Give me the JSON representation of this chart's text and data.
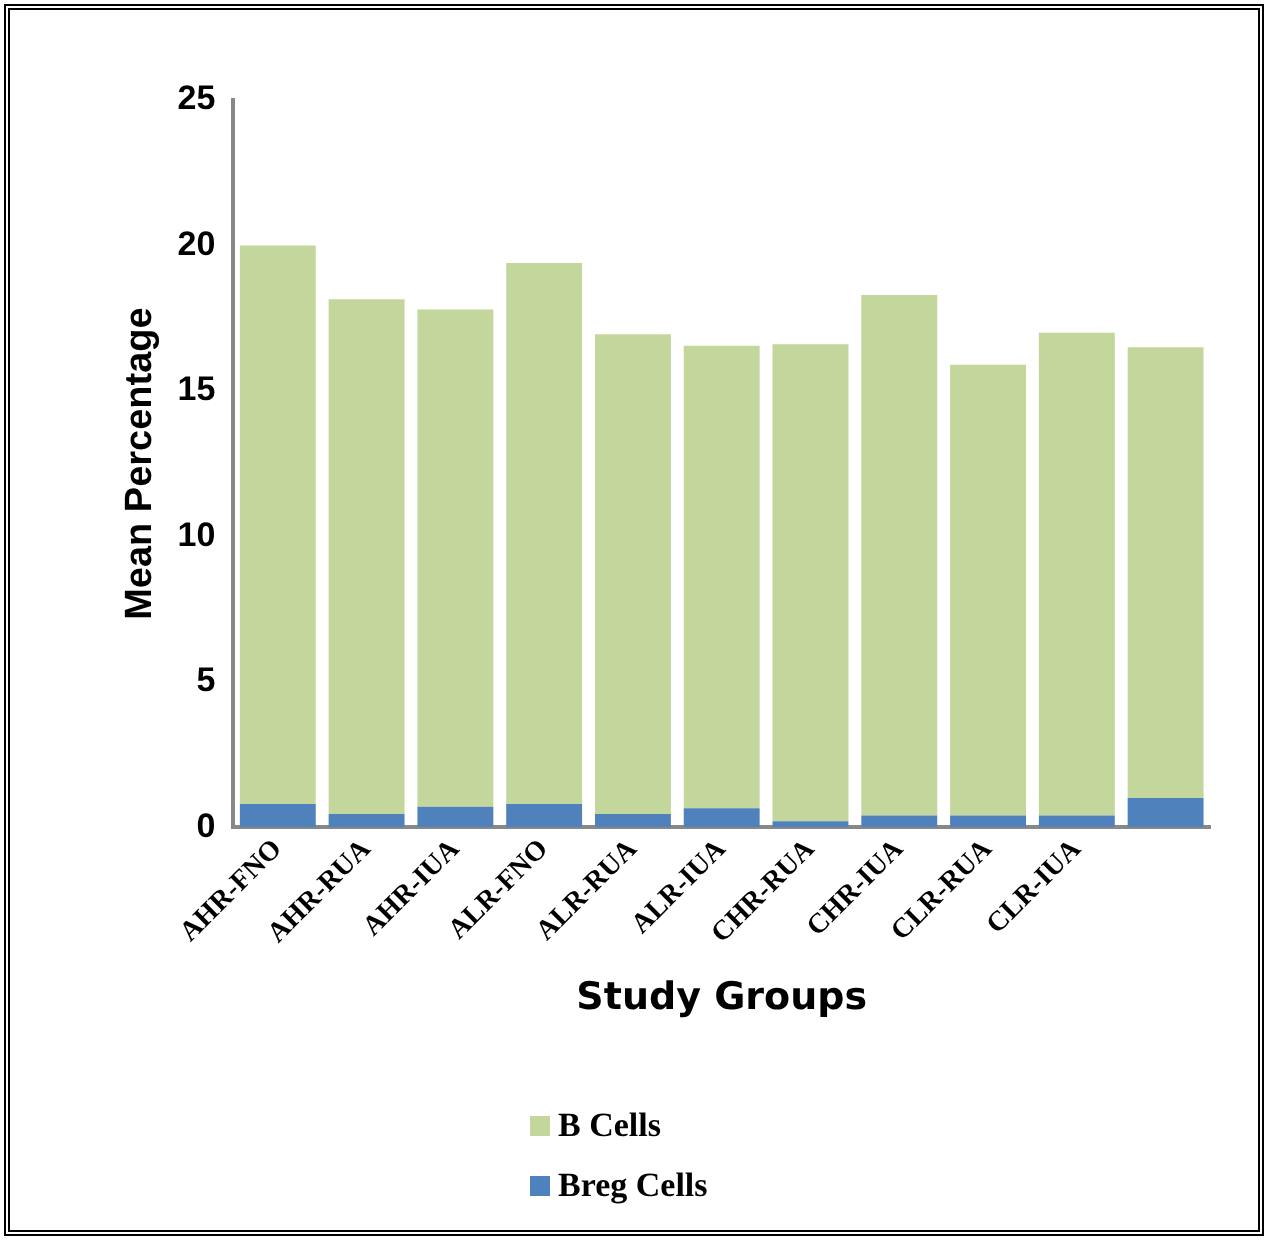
{
  "chart_data": {
    "type": "bar",
    "stacked": true,
    "xlabel": "Study Groups",
    "ylabel": "Mean Percentage",
    "categories": [
      "AHR-FNO",
      "AHR-RUA",
      "AHR-IUA",
      "ALR-FNO",
      "ALR-RUA",
      "ALR-IUA",
      "CHR-RUA",
      "CHR-IUA",
      "CLR-RUA",
      "CLR-IUA",
      null
    ],
    "series": [
      {
        "name": "Breg Cells",
        "color": "#4f81bd",
        "values": [
          0.8,
          0.45,
          0.7,
          0.8,
          0.45,
          0.65,
          0.2,
          0.4,
          0.4,
          0.4,
          1.0
        ]
      },
      {
        "name": "B Cells",
        "color": "#c3d69b",
        "values": [
          19.2,
          17.7,
          17.1,
          18.6,
          16.5,
          15.9,
          16.4,
          17.9,
          15.5,
          16.6,
          15.5
        ]
      }
    ],
    "ylim": [
      0,
      25
    ],
    "yticks": [
      0,
      5,
      10,
      15,
      20,
      25
    ],
    "grid": false,
    "legend": "bottom"
  }
}
